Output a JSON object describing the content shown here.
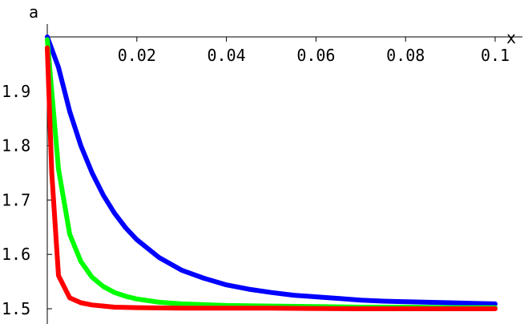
{
  "chart_data": {
    "type": "line",
    "xlabel": "x",
    "ylabel": "a",
    "xlim": [
      0,
      0.1
    ],
    "ylim": [
      1.5,
      2.0
    ],
    "x_ticks": [
      0.02,
      0.04,
      0.06,
      0.08,
      0.1
    ],
    "x_tick_labels": [
      "0.02",
      "0.04",
      "0.06",
      "0.08",
      "0.1"
    ],
    "y_ticks": [
      1.5,
      1.6,
      1.7,
      1.8,
      1.9
    ],
    "y_tick_labels": [
      "1.5",
      "1.6",
      "1.7",
      "1.8",
      "1.9"
    ],
    "grid": false,
    "series": [
      {
        "color": "#0000ff",
        "x": [
          0,
          0.0025,
          0.005,
          0.0075,
          0.01,
          0.0125,
          0.015,
          0.0175,
          0.02,
          0.025,
          0.03,
          0.035,
          0.04,
          0.045,
          0.05,
          0.055,
          0.06,
          0.065,
          0.07,
          0.075,
          0.08,
          0.085,
          0.09,
          0.095,
          0.1
        ],
        "y": [
          2.0,
          1.944,
          1.863,
          1.8,
          1.75,
          1.709,
          1.676,
          1.649,
          1.627,
          1.594,
          1.571,
          1.556,
          1.544,
          1.536,
          1.53,
          1.525,
          1.522,
          1.519,
          1.516,
          1.514,
          1.513,
          1.512,
          1.511,
          1.51,
          1.509
        ]
      },
      {
        "color": "#00ff00",
        "x": [
          0,
          0.0025,
          0.005,
          0.0075,
          0.01,
          0.0125,
          0.015,
          0.0175,
          0.02,
          0.025,
          0.03,
          0.04,
          0.05,
          0.06,
          0.07,
          0.08,
          0.09,
          0.1
        ],
        "y": [
          1.995,
          1.757,
          1.637,
          1.587,
          1.558,
          1.541,
          1.53,
          1.523,
          1.518,
          1.512,
          1.509,
          1.506,
          1.505,
          1.504,
          1.503,
          1.503,
          1.502,
          1.502
        ]
      },
      {
        "color": "#ff0000",
        "x": [
          0,
          0.001,
          0.0025,
          0.005,
          0.0075,
          0.01,
          0.0125,
          0.015,
          0.02,
          0.03,
          0.05,
          0.07,
          0.1
        ],
        "y": [
          1.98,
          1.75,
          1.561,
          1.52,
          1.511,
          1.507,
          1.505,
          1.503,
          1.502,
          1.501,
          1.501,
          1.5,
          1.5
        ]
      }
    ]
  }
}
